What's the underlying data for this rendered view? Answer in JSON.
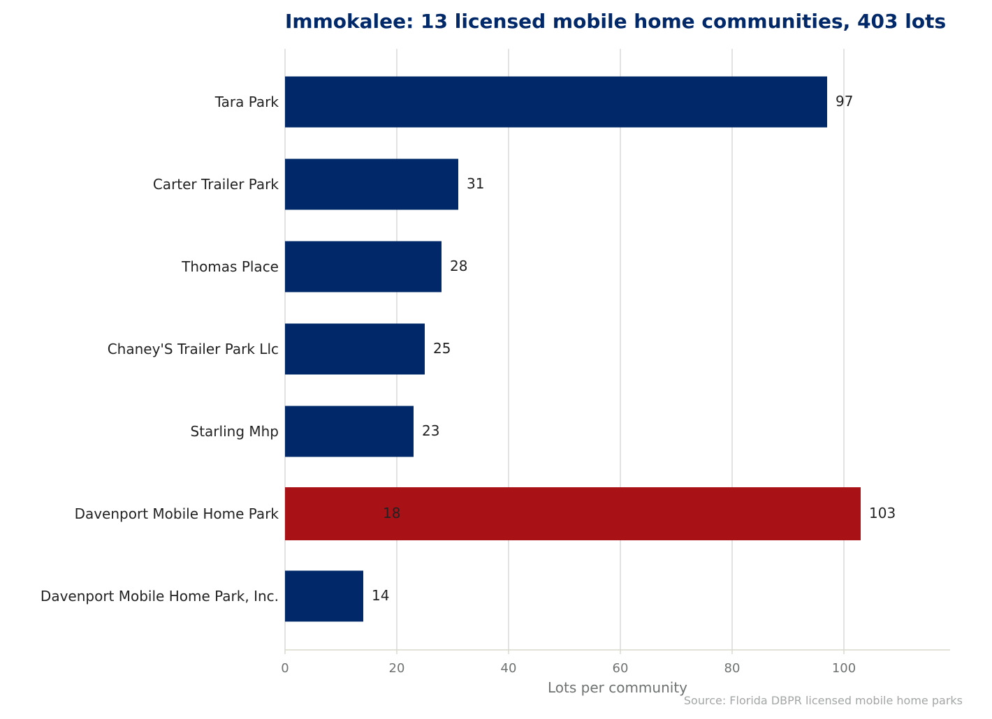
{
  "chart_data": {
    "type": "bar",
    "orientation": "horizontal",
    "title": "Immokalee: 13 licensed mobile home communities, 403 lots",
    "xlabel": "Lots per community",
    "ylabel": "",
    "source": "Source: Florida DBPR licensed mobile home parks",
    "xlim": [
      0,
      119
    ],
    "xticks": [
      0,
      20,
      40,
      60,
      80,
      100
    ],
    "grid": true,
    "categories": [
      "Tara Park",
      "Carter Trailer Park",
      "Thomas Place",
      "Chaney'S Trailer Park Llc",
      "Starling Mhp",
      "Davenport Mobile Home Park",
      "Davenport Mobile Home Park, Inc."
    ],
    "values": [
      97,
      31,
      28,
      25,
      23,
      103,
      14
    ],
    "extra_labels": [
      null,
      null,
      null,
      null,
      null,
      "18",
      null
    ],
    "highlight_index": 5,
    "colors": {
      "bar": "#012868",
      "highlight": "#a81116",
      "grid": "#d9d9d9",
      "axis": "#d8d8cc",
      "title": "#012868"
    }
  }
}
